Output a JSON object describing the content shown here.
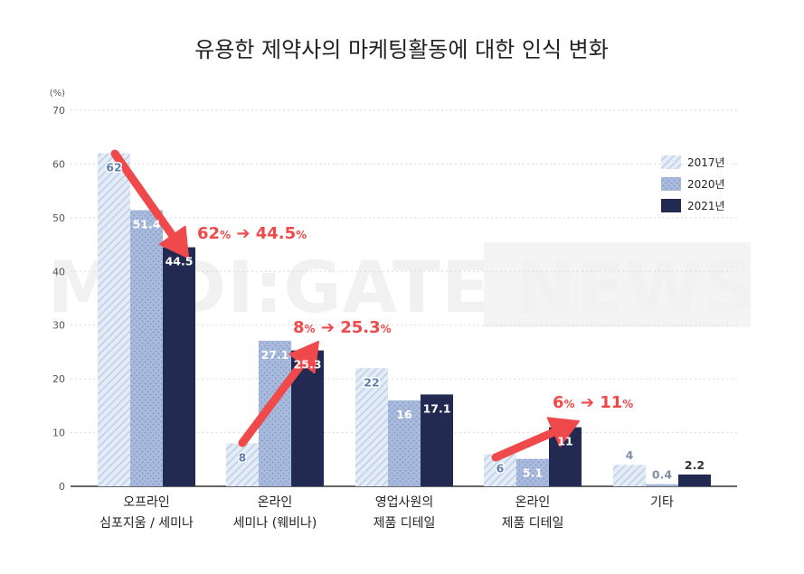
{
  "chart_data": {
    "type": "bar",
    "title": "유용한 제약사의 마케팅활동에 대한 인식 변화",
    "unit_label": "(%)",
    "ylim": [
      0,
      70
    ],
    "yticks": [
      0,
      10,
      20,
      30,
      40,
      50,
      60,
      70
    ],
    "grid": true,
    "legend_position": "top-right",
    "categories": [
      [
        "오프라인",
        "심포지움 / 세미나"
      ],
      [
        "온라인",
        "세미나 (웨비나)"
      ],
      [
        "영업사원의",
        "제품 디테일"
      ],
      [
        "온라인",
        "제품 디테일"
      ],
      [
        "기타"
      ]
    ],
    "series": [
      {
        "name": "2017년",
        "values": [
          62,
          8,
          22,
          6,
          4
        ],
        "value_labels": [
          "62",
          "8",
          "22",
          "6",
          "4"
        ]
      },
      {
        "name": "2020년",
        "values": [
          51.4,
          27.1,
          16,
          5.1,
          0.4
        ],
        "value_labels": [
          "51.4",
          "27.1",
          "16",
          "5.1",
          "0.4"
        ]
      },
      {
        "name": "2021년",
        "values": [
          44.5,
          25.3,
          17.1,
          11,
          2.2
        ],
        "value_labels": [
          "44.5",
          "25.3",
          "17.1",
          "11",
          "2.2"
        ]
      }
    ],
    "annotations": [
      {
        "category_index": 0,
        "from_value": "62",
        "to_value": "44.5",
        "unit": "%",
        "direction": "down"
      },
      {
        "category_index": 1,
        "from_value": "8",
        "to_value": "25.3",
        "unit": "%",
        "direction": "up"
      },
      {
        "category_index": 3,
        "from_value": "6",
        "to_value": "11",
        "unit": "%",
        "direction": "up"
      }
    ]
  },
  "watermark": "MEDI:GATE NEWS",
  "colors": {
    "s2017": "#e4ecf7",
    "s2017_stripe": "#bfd0e6",
    "s2020": "#a9bbdc",
    "s2020_dot": "#7f95c4",
    "s2021": "#232a52",
    "annotation": "#f0494b",
    "axis": "#333333",
    "grid": "#d9d9d9"
  }
}
